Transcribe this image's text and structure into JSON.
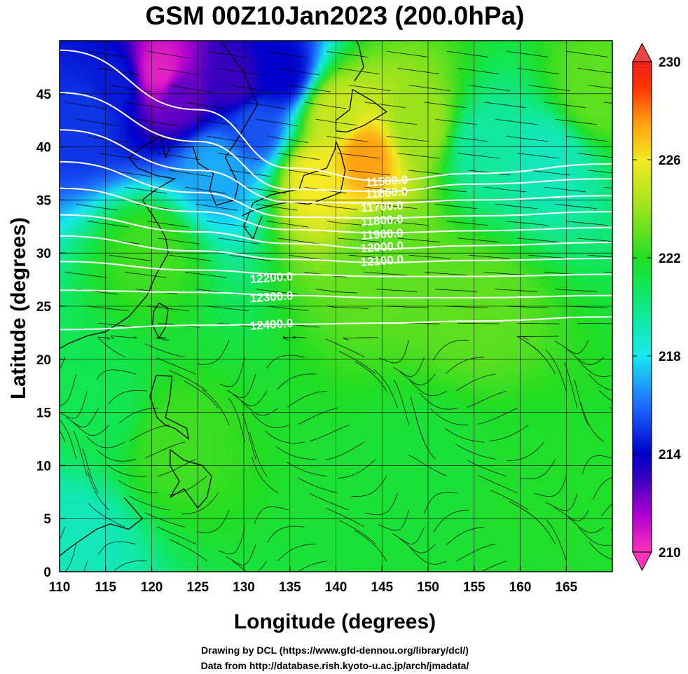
{
  "chart_data": {
    "type": "heatmap",
    "title": "GSM 00Z10Jan2023 (200.0hPa)",
    "xlabel": "Longitude (degrees)",
    "ylabel": "Latitude  (degrees)",
    "xlim": [
      110,
      170
    ],
    "ylim": [
      0,
      50
    ],
    "x_ticks": [
      "110",
      "115",
      "120",
      "125",
      "130",
      "135",
      "140",
      "145",
      "150",
      "155",
      "160",
      "165"
    ],
    "y_ticks": [
      "0",
      "5",
      "10",
      "15",
      "20",
      "25",
      "30",
      "35",
      "40",
      "45"
    ],
    "grid": true,
    "colorbar": {
      "min": 210,
      "max": 230,
      "ticks": [
        "210",
        "214",
        "218",
        "222",
        "226",
        "230"
      ],
      "stops": [
        {
          "v": 210,
          "c": "#ff33bb"
        },
        {
          "v": 211.5,
          "c": "#b000d0"
        },
        {
          "v": 213,
          "c": "#3a00c0"
        },
        {
          "v": 214,
          "c": "#0000cc"
        },
        {
          "v": 216,
          "c": "#1e6cff"
        },
        {
          "v": 218,
          "c": "#18e8f0"
        },
        {
          "v": 219.5,
          "c": "#10e8a0"
        },
        {
          "v": 221,
          "c": "#12e650"
        },
        {
          "v": 222,
          "c": "#22dd22"
        },
        {
          "v": 224,
          "c": "#9be31c"
        },
        {
          "v": 226,
          "c": "#f5ea22"
        },
        {
          "v": 227.5,
          "c": "#ffa010"
        },
        {
          "v": 229,
          "c": "#ff3000"
        },
        {
          "v": 230,
          "c": "#ee2222"
        }
      ]
    },
    "field_samples": [
      {
        "lon": 121,
        "lat": 47,
        "v": 210.5
      },
      {
        "lon": 123,
        "lat": 45,
        "v": 212.5
      },
      {
        "lon": 116,
        "lat": 46,
        "v": 214.5
      },
      {
        "lon": 129,
        "lat": 46,
        "v": 213.0
      },
      {
        "lon": 131,
        "lat": 42,
        "v": 215.5
      },
      {
        "lon": 134,
        "lat": 47,
        "v": 214.0
      },
      {
        "lon": 113,
        "lat": 43,
        "v": 215.0
      },
      {
        "lon": 127,
        "lat": 38,
        "v": 217.0
      },
      {
        "lon": 143,
        "lat": 39,
        "v": 227.5
      },
      {
        "lon": 138,
        "lat": 37,
        "v": 226.0
      },
      {
        "lon": 140,
        "lat": 43,
        "v": 225.0
      },
      {
        "lon": 149,
        "lat": 42,
        "v": 224.0
      },
      {
        "lon": 156,
        "lat": 40,
        "v": 219.5
      },
      {
        "lon": 163,
        "lat": 39,
        "v": 219.0
      },
      {
        "lon": 112,
        "lat": 3,
        "v": 219.0
      },
      {
        "lon": 115,
        "lat": 15,
        "v": 221.0
      },
      {
        "lon": 122,
        "lat": 12,
        "v": 222.5
      },
      {
        "lon": 150,
        "lat": 10,
        "v": 221.5
      },
      {
        "lon": 161,
        "lat": 8,
        "v": 221.8
      },
      {
        "lon": 155,
        "lat": 25,
        "v": 223.0
      },
      {
        "lon": 145,
        "lat": 30,
        "v": 223.0
      },
      {
        "lon": 120,
        "lat": 30,
        "v": 222.5
      },
      {
        "lon": 168,
        "lat": 45,
        "v": 223.0
      }
    ],
    "contours": [
      {
        "label": "11500.0",
        "lat_at": [
          [
            110,
            49.1
          ],
          [
            125,
            43.5
          ],
          [
            135,
            38.0
          ],
          [
            145,
            36.8
          ],
          [
            155,
            37.5
          ],
          [
            170,
            38.4
          ]
        ]
      },
      {
        "label": "11600.0",
        "lat_at": [
          [
            110,
            45.1
          ],
          [
            125,
            40.5
          ],
          [
            135,
            36.0
          ],
          [
            145,
            35.8
          ],
          [
            155,
            36.5
          ],
          [
            170,
            37.0
          ]
        ]
      },
      {
        "label": "11700.0",
        "lat_at": [
          [
            110,
            41.6
          ],
          [
            125,
            37.8
          ],
          [
            135,
            34.8
          ],
          [
            145,
            34.7
          ],
          [
            155,
            35.0
          ],
          [
            170,
            35.4
          ]
        ]
      },
      {
        "label": "11800.0",
        "lat_at": [
          [
            110,
            38.6
          ],
          [
            125,
            35.7
          ],
          [
            135,
            33.4
          ],
          [
            145,
            33.3
          ],
          [
            155,
            33.5
          ],
          [
            170,
            33.9
          ]
        ]
      },
      {
        "label": "11900.0",
        "lat_at": [
          [
            110,
            36.1
          ],
          [
            125,
            33.9
          ],
          [
            135,
            32.2
          ],
          [
            145,
            31.9
          ],
          [
            155,
            32.1
          ],
          [
            170,
            32.4
          ]
        ]
      },
      {
        "label": "12000.0",
        "lat_at": [
          [
            110,
            33.6
          ],
          [
            125,
            32.0
          ],
          [
            135,
            30.9
          ],
          [
            145,
            30.4
          ],
          [
            155,
            30.7
          ],
          [
            170,
            31.0
          ]
        ]
      },
      {
        "label": "12100.0",
        "lat_at": [
          [
            110,
            31.6
          ],
          [
            125,
            30.2
          ],
          [
            135,
            29.4
          ],
          [
            145,
            29.1
          ],
          [
            155,
            29.3
          ],
          [
            170,
            29.5
          ]
        ]
      },
      {
        "label": "12200.0",
        "lat_at": [
          [
            110,
            29.2
          ],
          [
            125,
            28.4
          ],
          [
            135,
            28.0
          ],
          [
            145,
            27.8
          ],
          [
            155,
            27.8
          ],
          [
            170,
            28.0
          ]
        ]
      },
      {
        "label": "12300.0",
        "lat_at": [
          [
            110,
            26.5
          ],
          [
            125,
            26.3
          ],
          [
            135,
            26.0
          ],
          [
            145,
            25.8
          ],
          [
            155,
            25.8
          ],
          [
            170,
            26.0
          ]
        ]
      },
      {
        "label": "12400.0",
        "lat_at": [
          [
            110,
            22.8
          ],
          [
            125,
            23.2
          ],
          [
            135,
            23.3
          ],
          [
            145,
            23.4
          ],
          [
            155,
            23.6
          ],
          [
            170,
            24.0
          ]
        ]
      }
    ],
    "contour_labels": [
      {
        "text": "11500.0",
        "lon": 145.5,
        "lat": 36.8
      },
      {
        "text": "11600.0",
        "lon": 145.5,
        "lat": 35.7
      },
      {
        "text": "11700.0",
        "lon": 145.0,
        "lat": 34.4
      },
      {
        "text": "11800.0",
        "lon": 145.0,
        "lat": 33.1
      },
      {
        "text": "11900.0",
        "lon": 145.0,
        "lat": 31.8
      },
      {
        "text": "12000.0",
        "lon": 145.0,
        "lat": 30.6
      },
      {
        "text": "12100.0",
        "lon": 145.0,
        "lat": 29.3
      },
      {
        "text": "12200.0",
        "lon": 133.0,
        "lat": 27.7
      },
      {
        "text": "12300.0",
        "lon": 133.0,
        "lat": 25.9
      },
      {
        "text": "12400.0",
        "lon": 133.0,
        "lat": 23.3
      }
    ]
  },
  "credits": {
    "line1": "Drawing by DCL (https://www.gfd-dennou.org/library/dcl/)",
    "line2": "Data from http://database.rish.kyoto-u.ac.jp/arch/jmadata/"
  }
}
